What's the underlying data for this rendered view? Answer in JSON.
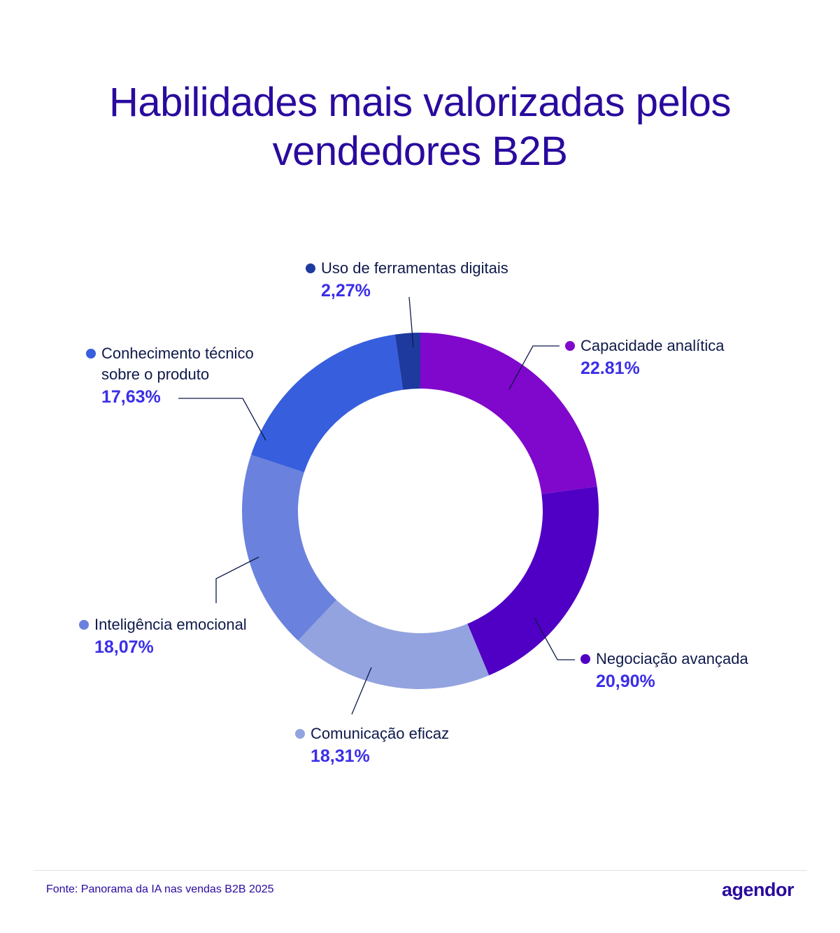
{
  "chart_data": {
    "type": "pie",
    "donut": true,
    "title": "Habilidades mais valorizadas pelos vendedores B2B",
    "slices": [
      {
        "label": "Capacidade analítica",
        "value": 22.81,
        "display": "22.81%",
        "color": "#8007CC"
      },
      {
        "label": "Negociação avançada",
        "value": 20.9,
        "display": "20,90%",
        "color": "#5000C4"
      },
      {
        "label": "Comunicação eficaz",
        "value": 18.31,
        "display": "18,31%",
        "color": "#93A3E0"
      },
      {
        "label": "Inteligência emocional",
        "value": 18.07,
        "display": "18,07%",
        "color": "#6A82DD"
      },
      {
        "label": "Conhecimento técnico sobre o produto",
        "value": 17.63,
        "display": "17,63%",
        "color": "#375EDD"
      },
      {
        "label": "Uso de ferramentas digitais",
        "value": 2.27,
        "display": "2,27%",
        "color": "#1E3A9F"
      }
    ],
    "legend": "callout labels"
  },
  "footer": {
    "source": "Fonte: Panorama da IA nas vendas B2B 2025",
    "logo": "agendor"
  }
}
